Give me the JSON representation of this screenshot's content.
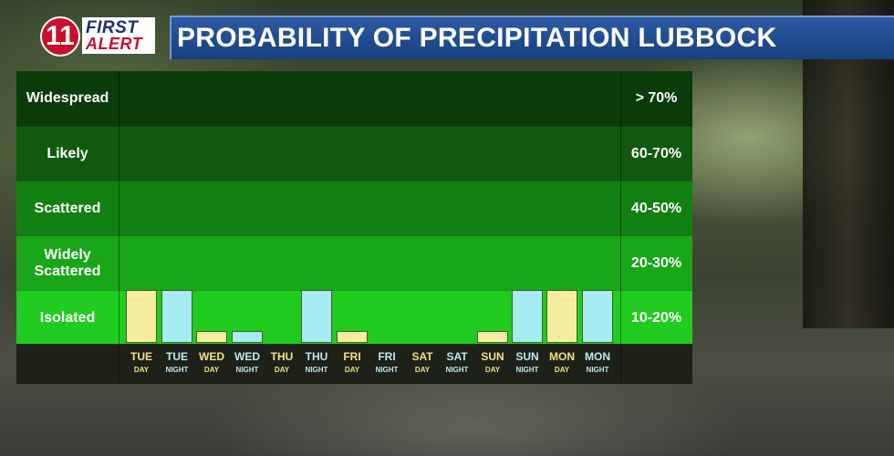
{
  "logo": {
    "number": "11",
    "word1": "FIRST",
    "word2": "ALERT"
  },
  "title": "PROBABILITY OF PRECIPITATION LUBBOCK",
  "colors": {
    "day_bar": "#f6eda0",
    "night_bar": "#a6ecf3",
    "title_bg": "#1f4d93",
    "band_widespread": "#0b3a0b",
    "band_likely": "#0f5a0f",
    "band_scattered": "#138013",
    "band_widely_scattered": "#19a619",
    "band_isolated": "#20cc20"
  },
  "chart_data": {
    "type": "bar",
    "title": "PROBABILITY OF PRECIPITATION LUBBOCK",
    "categories": [
      "Widespread",
      "Likely",
      "Scattered",
      "Widely Scattered",
      "Isolated"
    ],
    "percent_labels": [
      "> 70%",
      "60-70%",
      "40-50%",
      "20-30%",
      "10-20%"
    ],
    "periods": [
      {
        "day": "TUE",
        "part": "DAY",
        "level": 1.0
      },
      {
        "day": "TUE",
        "part": "NIGHT",
        "level": 1.0
      },
      {
        "day": "WED",
        "part": "DAY",
        "level": 0.25
      },
      {
        "day": "WED",
        "part": "NIGHT",
        "level": 0.25
      },
      {
        "day": "THU",
        "part": "DAY",
        "level": 0
      },
      {
        "day": "THU",
        "part": "NIGHT",
        "level": 1.0
      },
      {
        "day": "FRI",
        "part": "DAY",
        "level": 0.25
      },
      {
        "day": "FRI",
        "part": "NIGHT",
        "level": 0
      },
      {
        "day": "SAT",
        "part": "DAY",
        "level": 0
      },
      {
        "day": "SAT",
        "part": "NIGHT",
        "level": 0
      },
      {
        "day": "SUN",
        "part": "DAY",
        "level": 0.25
      },
      {
        "day": "SUN",
        "part": "NIGHT",
        "level": 1.0
      },
      {
        "day": "MON",
        "part": "DAY",
        "level": 1.0
      },
      {
        "day": "MON",
        "part": "NIGHT",
        "level": 1.0
      }
    ],
    "ylim": [
      0,
      5
    ]
  }
}
